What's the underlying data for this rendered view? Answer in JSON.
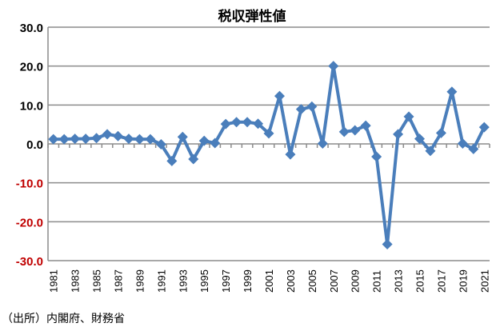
{
  "chart_data": {
    "type": "line",
    "title": "税収弾性値",
    "source": "（出所）内閣府、財務省",
    "x": [
      1981,
      1982,
      1983,
      1984,
      1985,
      1986,
      1987,
      1988,
      1989,
      1990,
      1991,
      1992,
      1993,
      1994,
      1995,
      1996,
      1997,
      1998,
      1999,
      2000,
      2001,
      2002,
      2003,
      2004,
      2005,
      2006,
      2007,
      2008,
      2009,
      2010,
      2011,
      2012,
      2013,
      2014,
      2015,
      2016,
      2017,
      2018,
      2019,
      2020,
      2021
    ],
    "series": [
      {
        "values": [
          1.2,
          1.2,
          1.3,
          1.3,
          1.5,
          2.5,
          2.0,
          1.3,
          1.2,
          1.2,
          -0.1,
          -4.4,
          1.8,
          -3.9,
          0.8,
          0.2,
          5.1,
          5.6,
          5.6,
          5.2,
          2.7,
          12.3,
          -2.7,
          8.9,
          9.6,
          0.1,
          20.0,
          3.1,
          3.5,
          4.7,
          -3.3,
          -25.8,
          2.5,
          7.0,
          1.3,
          -1.8,
          2.8,
          13.4,
          0.1,
          -1.3,
          4.3
        ],
        "color": "#4a7ebb"
      }
    ],
    "ylim": [
      -30,
      30
    ],
    "yticks": [
      "30.0",
      "20.0",
      "10.0",
      "0.0",
      "-10.0",
      "-20.0",
      "-30.0"
    ],
    "xtick_labels": [
      "1981",
      "1983",
      "1985",
      "1987",
      "1989",
      "1991",
      "1993",
      "1995",
      "1997",
      "1999",
      "2001",
      "2003",
      "2005",
      "2007",
      "2009",
      "2011",
      "2013",
      "2015",
      "2017",
      "2019",
      "2021"
    ],
    "negative_tick_color": "#c00000",
    "grid": true,
    "marker": "diamond"
  }
}
